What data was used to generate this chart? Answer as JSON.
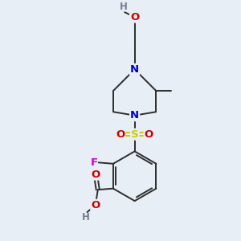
{
  "bg_color": "#e8eef5",
  "atom_colors": {
    "C": "#2d2d2d",
    "N": "#0000cc",
    "O": "#cc0000",
    "F": "#cc00cc",
    "S": "#cccc00",
    "H_gray": "#708090"
  }
}
